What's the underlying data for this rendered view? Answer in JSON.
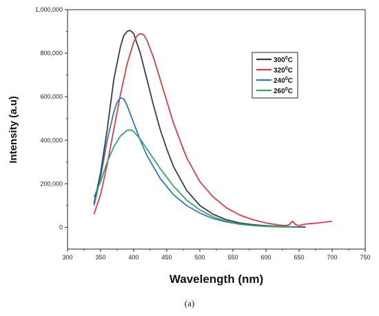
{
  "chart_data": {
    "type": "line",
    "title": "",
    "xlabel": "Wavelength (nm)",
    "ylabel": "Intensity (a.u)",
    "xlim": [
      300,
      750
    ],
    "ylim": [
      -100000,
      1000000
    ],
    "x_ticks": [
      300,
      350,
      400,
      450,
      500,
      550,
      600,
      650,
      700,
      750
    ],
    "x_tick_labels": [
      "300",
      "350",
      "400",
      "450",
      "500",
      "550",
      "600",
      "650",
      "700",
      "750"
    ],
    "y_ticks": [
      0,
      200000,
      400000,
      600000,
      800000,
      1000000
    ],
    "y_tick_labels": [
      "0",
      "200,000",
      "400,000",
      "600,000",
      "800,000",
      "1,000,000"
    ],
    "grid": false,
    "legend_position": "upper-right",
    "series": [
      {
        "name": "300",
        "unit_sup": "0",
        "unit": "C",
        "color": "#3a3a3a",
        "x": [
          340,
          350,
          360,
          370,
          380,
          385,
          390,
          395,
          400,
          410,
          420,
          430,
          440,
          450,
          460,
          480,
          500,
          520,
          540,
          560,
          580,
          600,
          620,
          640,
          660
        ],
        "y": [
          110000,
          250000,
          450000,
          680000,
          830000,
          880000,
          900000,
          905000,
          890000,
          800000,
          680000,
          560000,
          450000,
          360000,
          280000,
          170000,
          100000,
          60000,
          35000,
          20000,
          12000,
          7000,
          4000,
          2000,
          1000
        ]
      },
      {
        "name": "320",
        "unit_sup": "0",
        "unit": "C",
        "color": "#e0393e",
        "x": [
          340,
          350,
          360,
          370,
          380,
          390,
          400,
          405,
          410,
          415,
          420,
          430,
          440,
          450,
          460,
          480,
          500,
          520,
          540,
          560,
          580,
          600,
          620,
          630,
          635,
          640,
          645,
          650,
          660,
          680,
          700
        ],
        "y": [
          60000,
          150000,
          290000,
          450000,
          610000,
          750000,
          850000,
          880000,
          890000,
          885000,
          860000,
          780000,
          680000,
          580000,
          480000,
          320000,
          210000,
          140000,
          90000,
          57000,
          35000,
          20000,
          10000,
          8000,
          12000,
          28000,
          12000,
          8000,
          15000,
          20000,
          28000
        ]
      },
      {
        "name": "240",
        "unit_sup": "0",
        "unit": "C",
        "color": "#2f74c8",
        "x": [
          340,
          350,
          360,
          370,
          375,
          380,
          385,
          390,
          400,
          410,
          420,
          440,
          460,
          480,
          500,
          520,
          540,
          560,
          580,
          600,
          620,
          640,
          650
        ],
        "y": [
          100000,
          230000,
          400000,
          530000,
          575000,
          595000,
          590000,
          560000,
          480000,
          400000,
          330000,
          225000,
          150000,
          100000,
          65000,
          40000,
          25000,
          14000,
          8000,
          5000,
          3000,
          2000,
          1000
        ]
      },
      {
        "name": "260",
        "unit_sup": "0",
        "unit": "C",
        "color": "#2fa86a",
        "x": [
          340,
          350,
          360,
          370,
          380,
          390,
          395,
          400,
          410,
          420,
          440,
          460,
          480,
          500,
          520,
          540,
          560,
          580,
          600,
          620,
          640
        ],
        "y": [
          140000,
          210000,
          300000,
          370000,
          420000,
          445000,
          448000,
          440000,
          405000,
          360000,
          270000,
          190000,
          125000,
          80000,
          48000,
          28000,
          15000,
          8000,
          4000,
          2000,
          1000
        ]
      }
    ]
  },
  "caption": "(a)"
}
